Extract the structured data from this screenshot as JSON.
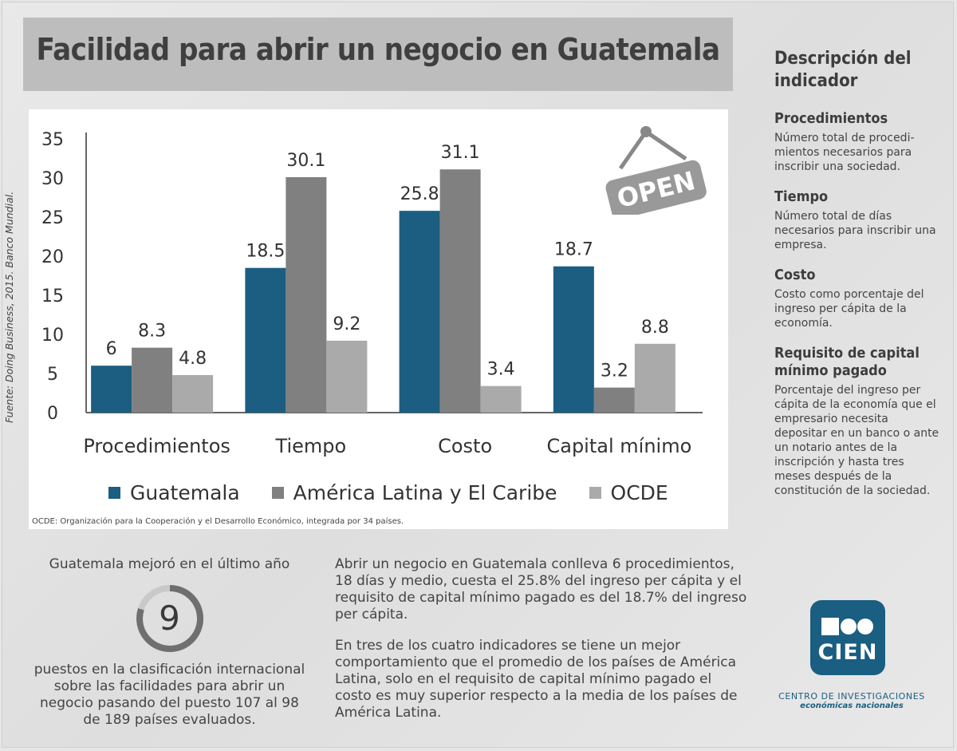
{
  "header": {
    "title": "Facilidad para abrir un negocio en Guatemala"
  },
  "source_note": "Fuente: Doing Business, 2015. Banco Mundial.",
  "chart_data": {
    "type": "bar",
    "categories": [
      "Procedimientos",
      "Tiempo",
      "Costo",
      "Capital mínimo"
    ],
    "series": [
      {
        "name": "Guatemala",
        "color": "#1b5e82",
        "values": [
          6,
          18.5,
          25.8,
          18.7
        ],
        "labels": [
          "6",
          "18.5",
          "25.8",
          "18.7"
        ]
      },
      {
        "name": "América Latina y El Caribe",
        "color": "#808080",
        "values": [
          8.3,
          30.1,
          31.1,
          3.2
        ],
        "labels": [
          "8.3",
          "30.1",
          "31.1",
          "3.2"
        ]
      },
      {
        "name": "OCDE",
        "color": "#aaaaaa",
        "values": [
          4.8,
          9.2,
          3.4,
          8.8
        ],
        "labels": [
          "4.8",
          "9.2",
          "3.4",
          "8.8"
        ]
      }
    ],
    "ylim": [
      0,
      35
    ],
    "yticks": [
      "0",
      "5",
      "10",
      "15",
      "20",
      "25",
      "30",
      "35"
    ],
    "ytick_values": [
      0,
      5,
      10,
      15,
      20,
      25,
      30,
      35
    ],
    "xlabel": "",
    "ylabel": "",
    "legend": "bottom"
  },
  "chart_footnote": "OCDE: Organización para la Cooperación y el Desarrollo Económico, integrada por 34 países.",
  "open_sign": {
    "text": "OPEN"
  },
  "side": {
    "title": "Descripción del indicador",
    "items": [
      {
        "title": "Procedimientos",
        "text": "Número total de procedi-mientos necesarios para inscribir una sociedad."
      },
      {
        "title": "Tiempo",
        "text": "Número total de días necesarios para inscribir una empresa."
      },
      {
        "title": "Costo",
        "text": "Costo como porcentaje del ingreso per cápita de la economía."
      },
      {
        "title": "Requisito de capital mínimo pagado",
        "text": "Porcentaje del ingreso per cápita de la economía que el empresario necesita depositar en un banco o ante un notario antes de la inscripción y hasta tres meses después de la constitución de la sociedad."
      }
    ]
  },
  "improvement": {
    "heading": "Guatemala mejoró en el último año",
    "value": "9",
    "text": "puestos en la clasificación internacional sobre las facilidades para abrir un negocio pasando del puesto 107 al 98 de 189 países evaluados."
  },
  "summary": {
    "p1": "Abrir un negocio en Guatemala conlleva 6 procedimientos, 18 días y medio, cuesta el 25.8% del ingreso per cápita y el requisito de capital mínimo pagado es del 18.7% del ingreso per cápita.",
    "p2": "En tres de los cuatro indicadores se tiene un mejor comportamiento que el promedio de los países de América Latina, solo en el requisito de capital mínimo pagado el costo es muy superior respecto a la media de los países de América Latina."
  },
  "logo": {
    "text": "CIEN",
    "org_line1": "CENTRO DE INVESTIGACIONES",
    "org_line2": "económicas nacionales"
  }
}
